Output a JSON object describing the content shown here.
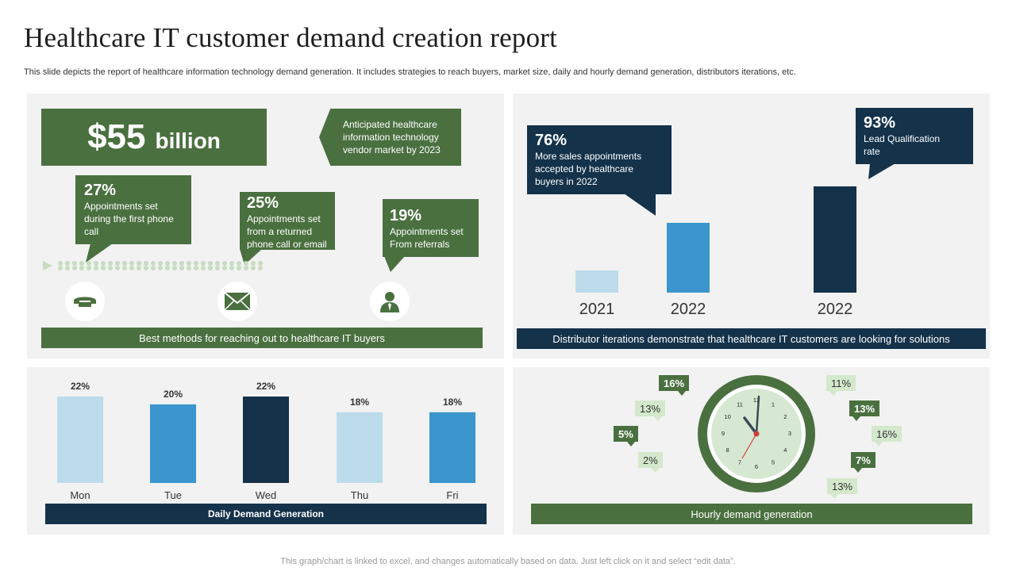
{
  "header": {
    "title": "Healthcare IT customer demand creation report",
    "subtitle": "This slide depicts the report of healthcare information technology demand generation. It includes strategies to reach buyers, market size, daily and hourly demand generation, distributors iterations, etc."
  },
  "market": {
    "value": "$55",
    "unit": "billion",
    "note": "Anticipated healthcare information technology vendor market by 2023"
  },
  "methods": {
    "items": [
      {
        "pct": "27%",
        "text": "Appointments set during the first phone call",
        "icon": "phone-icon"
      },
      {
        "pct": "25%",
        "text": "Appointments set from a returned phone call or email",
        "icon": "envelope-icon"
      },
      {
        "pct": "19%",
        "text": "Appointments set From referrals",
        "icon": "person-icon"
      }
    ],
    "label": "Best methods for reaching out to healthcare IT buyers"
  },
  "distributor": {
    "callout_left": {
      "pct": "76%",
      "text": "More sales appointments accepted by healthcare buyers in 2022"
    },
    "callout_right": {
      "pct": "93%",
      "text": "Lead Qualification rate"
    },
    "label": "Distributor iterations demonstrate that healthcare IT customers are looking for solutions"
  },
  "hourly": {
    "label": "Hourly demand generation",
    "tags": [
      {
        "value": "16%",
        "style": "dark"
      },
      {
        "value": "13%",
        "style": "light"
      },
      {
        "value": "5%",
        "style": "dark"
      },
      {
        "value": "2%",
        "style": "light"
      },
      {
        "value": "11%",
        "style": "light"
      },
      {
        "value": "13%",
        "style": "dark"
      },
      {
        "value": "16%",
        "style": "light"
      },
      {
        "value": "7%",
        "style": "dark"
      },
      {
        "value": "13%",
        "style": "light"
      }
    ],
    "clock_numbers": [
      "12",
      "1",
      "2",
      "3",
      "4",
      "5",
      "6",
      "7",
      "8",
      "9",
      "10",
      "11"
    ]
  },
  "colors": {
    "green": "#4a7040",
    "navy": "#14324a",
    "light_blue": "#bcdcec",
    "mid_blue": "#3a96cc",
    "light_green": "#d4e8cc"
  },
  "footer": "This graph/chart is linked to excel, and changes automatically based on data. Just left click on it and select “edit data”.",
  "chart_data": [
    {
      "type": "bar",
      "categories": [
        "2021",
        "2022",
        "2022"
      ],
      "values": [
        28,
        88,
        134
      ],
      "colors": [
        "#bcdcec",
        "#3a96cc",
        "#14324a"
      ],
      "ylim": [
        0,
        140
      ],
      "axes_visible": false
    },
    {
      "type": "bar",
      "categories": [
        "Mon",
        "Tue",
        "Wed",
        "Thu",
        "Fri"
      ],
      "values": [
        22,
        20,
        22,
        18,
        18
      ],
      "value_labels": [
        "22%",
        "20%",
        "22%",
        "18%",
        "18%"
      ],
      "colors": [
        "#bcdcec",
        "#3a96cc",
        "#14324a",
        "#bcdcec",
        "#3a96cc"
      ],
      "xlabel": "Daily Demand Generation",
      "ylim": [
        0,
        22
      ]
    }
  ]
}
